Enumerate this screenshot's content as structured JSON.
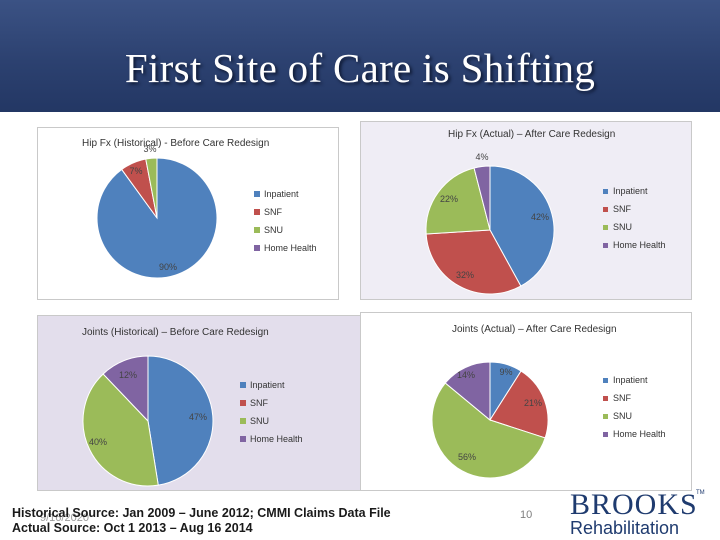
{
  "slide": {
    "title": "First Site of Care is Shifting",
    "source_line1": "Historical Source: Jan 2009 – June 2012; CMMI Claims Data File",
    "source_line2": "Actual Source: Oct 1 2013 – Aug 16 2014",
    "date_stamp": "9/16/2020",
    "page_number": "10",
    "logo_top": "BROOKS",
    "logo_tm": "TM",
    "logo_bottom": "Rehabilitation"
  },
  "colors": {
    "Inpatient": "#4f81bd",
    "SNF": "#c0504d",
    "SNU": "#9bbb59",
    "Home Health": "#8064a2"
  },
  "chart_data": [
    {
      "type": "pie",
      "title": "Hip Fx (Historical) - Before Care Redesign",
      "categories": [
        "Inpatient",
        "SNF",
        "SNU",
        "Home Health"
      ],
      "values": [
        90,
        7,
        3,
        0
      ],
      "labels": [
        "90%",
        "7%",
        "3%",
        ""
      ],
      "legend": [
        "Inpatient",
        "SNF",
        "SNU",
        "Home Health"
      ]
    },
    {
      "type": "pie",
      "title": "Hip Fx (Actual) – After Care Redesign",
      "categories": [
        "Inpatient",
        "SNF",
        "SNU",
        "Home Health"
      ],
      "values": [
        42,
        32,
        22,
        4
      ],
      "labels": [
        "42%",
        "32%",
        "22%",
        "4%"
      ],
      "legend": [
        "Inpatient",
        "SNF",
        "SNU",
        "Home Health"
      ]
    },
    {
      "type": "pie",
      "title": "Joints (Historical) – Before Care Redesign",
      "categories": [
        "Inpatient",
        "SNF",
        "SNU",
        "Home Health"
      ],
      "values": [
        47,
        0,
        40,
        12
      ],
      "labels": [
        "47%",
        "",
        "40%",
        "12%"
      ],
      "legend": [
        "Inpatient",
        "SNF",
        "SNU",
        "Home Health"
      ]
    },
    {
      "type": "pie",
      "title": "Joints (Actual) – After Care Redesign",
      "categories": [
        "Inpatient",
        "SNF",
        "SNU",
        "Home Health"
      ],
      "values": [
        9,
        21,
        56,
        14
      ],
      "labels": [
        "9%",
        "21%",
        "56%",
        "14%"
      ],
      "legend": [
        "Inpatient",
        "SNF",
        "SNU",
        "Home Health"
      ]
    }
  ]
}
